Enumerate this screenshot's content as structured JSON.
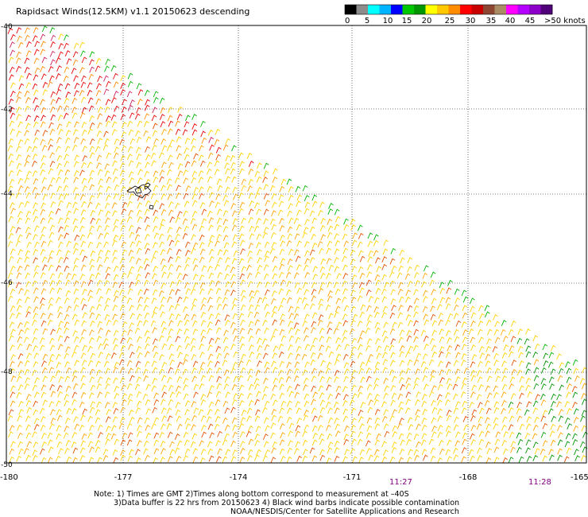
{
  "title": "Rapidsact Winds(12.5KM) v1.1 20150623 descending",
  "colorbar": {
    "ticks": [
      "0",
      "5",
      "10",
      "15",
      "20",
      "25",
      "30",
      "35",
      "40",
      "45",
      ">50 knots"
    ],
    "colors": [
      "#000000",
      "#8c8c8c",
      "#00ffff",
      "#00b4ff",
      "#0000ff",
      "#00c800",
      "#009600",
      "#ffff00",
      "#ffc800",
      "#ff8c00",
      "#ff0000",
      "#c80000",
      "#8c4632",
      "#aa8c64",
      "#ff00ff",
      "#b400ff",
      "#8c00c8",
      "#500078"
    ]
  },
  "map": {
    "lon_ticks": [
      "-180",
      "-177",
      "-174",
      "-171",
      "-168",
      "-165"
    ],
    "lat_ticks": [
      "-40",
      "-42",
      "-44",
      "-46",
      "-48",
      "-50"
    ],
    "times": [
      "11:27",
      "11:28"
    ],
    "time_color": "#800080"
  },
  "notes": {
    "line1": "Note: 1) Times are GMT 2)Times along bottom correspond to measurement at –40S",
    "line2": "3)Data buffer is 22 hrs from 20150623 4) Black wind barbs indicate possible contamination",
    "line3": "NOAA/NESDIS/Center for Satellite Applications and Research"
  }
}
